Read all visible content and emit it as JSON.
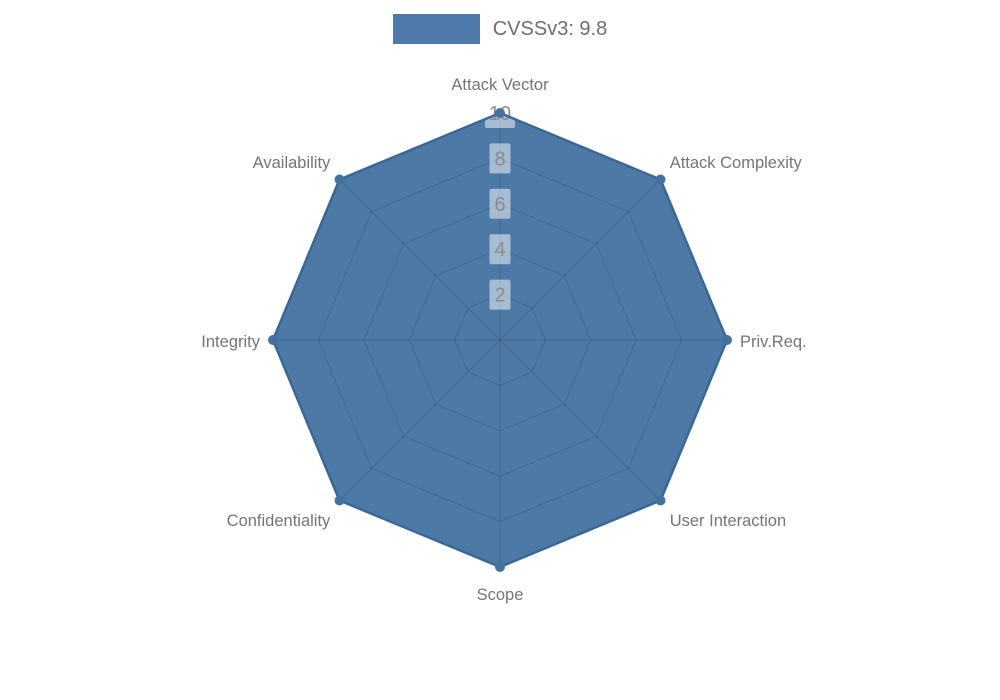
{
  "legend": {
    "label": "CVSSv3: 9.8",
    "swatch_color": "#4E7AAB"
  },
  "chart_data": {
    "type": "radar",
    "categories": [
      "Attack Vector",
      "Attack Complexity",
      "Priv.Req.",
      "User Interaction",
      "Scope",
      "Confidentiality",
      "Integrity",
      "Availability"
    ],
    "series": [
      {
        "name": "CVSSv3: 9.8",
        "values": [
          10,
          10,
          10,
          10,
          10,
          10,
          10,
          10
        ]
      }
    ],
    "ticks": [
      2,
      4,
      6,
      8,
      10
    ],
    "rmax": 10,
    "grid": "on",
    "legend_position": "top-center",
    "colors": {
      "fill": "#4D79A7",
      "line": "#3A6795",
      "marker": "#44719F",
      "grid_line": "rgba(55,65,82,0.30)",
      "axis_label": "#757575",
      "tick_label": "#8C8C8C",
      "tick_box": "rgba(255,255,255,0.50)"
    }
  }
}
